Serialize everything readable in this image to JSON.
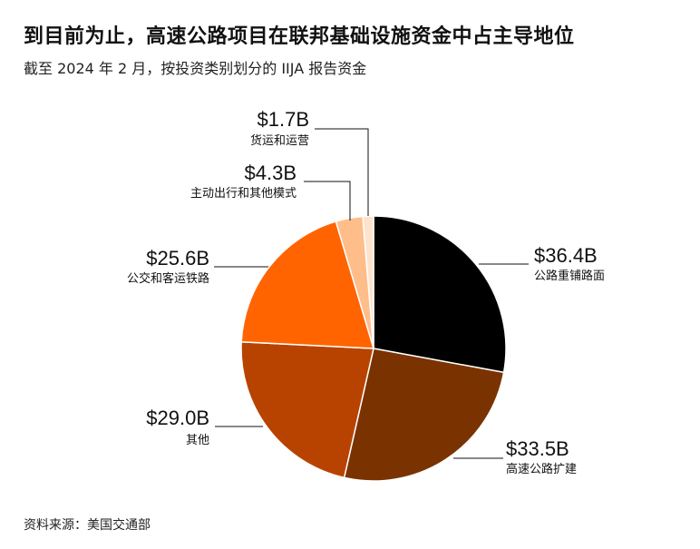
{
  "header": {
    "title": "到目前为止，高速公路项目在联邦基础设施资金中占主导地位",
    "subtitle": "截至 2024 年 2 月，按投资类别划分的 IIJA 报告资金"
  },
  "footer": {
    "source": "资料来源：美国交通部"
  },
  "chart_data": {
    "type": "pie",
    "unit": "B",
    "slices": [
      {
        "label": "公路重铺路面",
        "value": 36.4,
        "value_label": "$36.4B",
        "color": "#000000"
      },
      {
        "label": "高速公路扩建",
        "value": 33.5,
        "value_label": "$33.5B",
        "color": "#7a3300"
      },
      {
        "label": "其他",
        "value": 29.0,
        "value_label": "$29.0B",
        "color": "#b84300"
      },
      {
        "label": "公交和客运铁路",
        "value": 25.6,
        "value_label": "$25.6B",
        "color": "#ff6400"
      },
      {
        "label": "主动出行和其他模式",
        "value": 4.3,
        "value_label": "$4.3B",
        "color": "#ffbd8a"
      },
      {
        "label": "货运和运营",
        "value": 1.7,
        "value_label": "$1.7B",
        "color": "#fde2cc"
      }
    ]
  }
}
